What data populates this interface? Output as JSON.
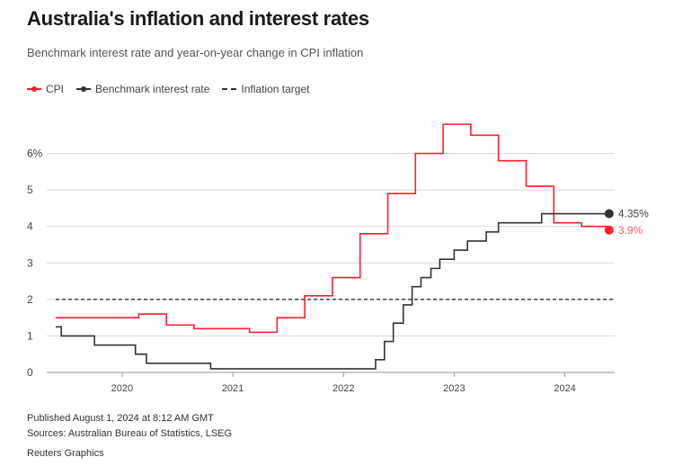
{
  "title": "Australia's inflation and interest rates",
  "subtitle": "Benchmark interest rate and year-on-year change in CPI inflation",
  "legend": {
    "cpi": "CPI",
    "rate": "Benchmark interest rate",
    "target": "Inflation target"
  },
  "footer": {
    "published": "Published August 1, 2024 at 8:12 AM GMT",
    "sources": "Sources: Australian Bureau of Statistics, LSEG",
    "credit": "Reuters Graphics"
  },
  "colors": {
    "cpi": "#ff1f2f",
    "rate": "#333333",
    "target": "#333333",
    "grid": "#d9d9d9",
    "cpi_label": "#ff5a64"
  },
  "chart_data": {
    "type": "line",
    "title": "Australia's inflation and interest rates",
    "subtitle": "Benchmark interest rate and year-on-year change in CPI inflation",
    "xlabel": "",
    "ylabel": "",
    "ylim": [
      0,
      7
    ],
    "xlim": [
      2019.4,
      2024.45
    ],
    "yticks": [
      {
        "value": 0,
        "label": "0"
      },
      {
        "value": 1,
        "label": "1"
      },
      {
        "value": 2,
        "label": "2"
      },
      {
        "value": 3,
        "label": "3"
      },
      {
        "value": 4,
        "label": "4"
      },
      {
        "value": 5,
        "label": "5"
      },
      {
        "value": 6,
        "label": "6%"
      }
    ],
    "xticks": [
      {
        "value": 2020,
        "label": "2020"
      },
      {
        "value": 2021,
        "label": "2021"
      },
      {
        "value": 2022,
        "label": "2022"
      },
      {
        "value": 2023,
        "label": "2023"
      },
      {
        "value": 2024,
        "label": "2024"
      }
    ],
    "grid": true,
    "legend_position": "top-left",
    "reference_lines": [
      {
        "name": "Inflation target",
        "y": 2,
        "style": "dashed"
      }
    ],
    "series": [
      {
        "name": "CPI",
        "step": true,
        "end_label": "3.9%",
        "points": [
          [
            2019.4,
            1.5
          ],
          [
            2020.15,
            1.6
          ],
          [
            2020.4,
            1.3
          ],
          [
            2020.65,
            1.2
          ],
          [
            2020.9,
            1.2
          ],
          [
            2021.15,
            1.1
          ],
          [
            2021.4,
            1.5
          ],
          [
            2021.65,
            2.1
          ],
          [
            2021.9,
            2.6
          ],
          [
            2022.15,
            3.8
          ],
          [
            2022.4,
            4.9
          ],
          [
            2022.65,
            6.0
          ],
          [
            2022.9,
            6.8
          ],
          [
            2023.15,
            6.5
          ],
          [
            2023.4,
            5.8
          ],
          [
            2023.65,
            5.1
          ],
          [
            2023.9,
            4.1
          ],
          [
            2024.15,
            4.0
          ],
          [
            2024.4,
            3.9
          ]
        ]
      },
      {
        "name": "Benchmark interest rate",
        "step": true,
        "end_label": "4.35%",
        "points": [
          [
            2019.4,
            1.25
          ],
          [
            2019.45,
            1.0
          ],
          [
            2019.75,
            0.75
          ],
          [
            2020.12,
            0.5
          ],
          [
            2020.22,
            0.25
          ],
          [
            2020.8,
            0.1
          ],
          [
            2022.29,
            0.35
          ],
          [
            2022.37,
            0.85
          ],
          [
            2022.45,
            1.35
          ],
          [
            2022.54,
            1.85
          ],
          [
            2022.62,
            2.35
          ],
          [
            2022.7,
            2.6
          ],
          [
            2022.79,
            2.85
          ],
          [
            2022.87,
            3.1
          ],
          [
            2023.0,
            3.35
          ],
          [
            2023.12,
            3.6
          ],
          [
            2023.29,
            3.85
          ],
          [
            2023.4,
            4.1
          ],
          [
            2023.79,
            4.35
          ],
          [
            2024.4,
            4.35
          ]
        ]
      }
    ]
  }
}
